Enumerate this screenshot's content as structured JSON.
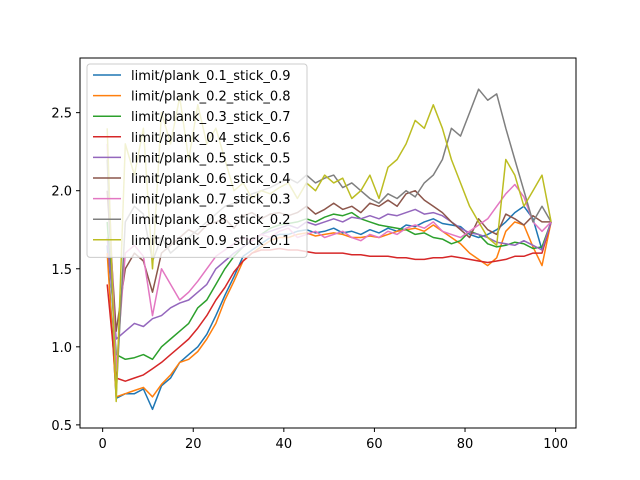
{
  "chart_data": {
    "type": "line",
    "title": "",
    "xlabel": "",
    "ylabel": "",
    "xlim": [
      -5.0,
      104.5
    ],
    "ylim": [
      0.48,
      2.85
    ],
    "xticks": [
      0,
      20,
      40,
      60,
      80,
      100
    ],
    "yticks": [
      0.5,
      1.0,
      1.5,
      2.0,
      2.5
    ],
    "grid": false,
    "legend_position": "upper-left",
    "x": [
      1,
      3,
      5,
      7,
      9,
      11,
      13,
      15,
      17,
      19,
      21,
      23,
      25,
      27,
      29,
      31,
      33,
      35,
      37,
      39,
      41,
      43,
      45,
      47,
      49,
      51,
      53,
      55,
      57,
      59,
      61,
      63,
      65,
      67,
      69,
      71,
      73,
      75,
      77,
      79,
      81,
      83,
      85,
      87,
      89,
      91,
      93,
      95,
      97,
      99
    ],
    "series": [
      {
        "name": "limit/plank_0.1_stick_0.9",
        "color": "#1f77b4",
        "values": [
          1.65,
          0.67,
          0.7,
          0.7,
          0.73,
          0.6,
          0.75,
          0.8,
          0.9,
          0.95,
          1.0,
          1.08,
          1.2,
          1.33,
          1.45,
          1.58,
          1.62,
          1.66,
          1.7,
          1.72,
          1.72,
          1.74,
          1.75,
          1.73,
          1.74,
          1.76,
          1.73,
          1.74,
          1.72,
          1.75,
          1.73,
          1.76,
          1.74,
          1.78,
          1.77,
          1.8,
          1.82,
          1.79,
          1.78,
          1.77,
          1.72,
          1.7,
          1.72,
          1.75,
          1.8,
          1.86,
          1.9,
          1.82,
          1.62,
          1.8
        ]
      },
      {
        "name": "limit/plank_0.2_stick_0.8",
        "color": "#ff7f0e",
        "values": [
          1.6,
          0.68,
          0.7,
          0.72,
          0.74,
          0.68,
          0.76,
          0.82,
          0.9,
          0.92,
          0.97,
          1.05,
          1.15,
          1.3,
          1.42,
          1.55,
          1.6,
          1.64,
          1.68,
          1.7,
          1.7,
          1.72,
          1.73,
          1.71,
          1.72,
          1.73,
          1.72,
          1.7,
          1.7,
          1.71,
          1.7,
          1.72,
          1.74,
          1.75,
          1.76,
          1.74,
          1.78,
          1.74,
          1.7,
          1.66,
          1.6,
          1.56,
          1.52,
          1.57,
          1.74,
          1.8,
          1.78,
          1.64,
          1.52,
          1.8
        ]
      },
      {
        "name": "limit/plank_0.3_stick_0.7",
        "color": "#2ca02c",
        "values": [
          1.8,
          0.95,
          0.92,
          0.93,
          0.95,
          0.92,
          1.0,
          1.05,
          1.1,
          1.15,
          1.25,
          1.3,
          1.4,
          1.5,
          1.58,
          1.64,
          1.68,
          1.72,
          1.76,
          1.78,
          1.79,
          1.8,
          1.82,
          1.8,
          1.83,
          1.85,
          1.84,
          1.86,
          1.82,
          1.8,
          1.78,
          1.77,
          1.76,
          1.75,
          1.72,
          1.73,
          1.7,
          1.69,
          1.66,
          1.68,
          1.74,
          1.72,
          1.66,
          1.64,
          1.65,
          1.67,
          1.66,
          1.63,
          1.64,
          1.8
        ]
      },
      {
        "name": "limit/plank_0.4_stick_0.6",
        "color": "#d62728",
        "values": [
          1.4,
          0.8,
          0.78,
          0.8,
          0.82,
          0.86,
          0.9,
          0.95,
          1.0,
          1.05,
          1.12,
          1.2,
          1.3,
          1.38,
          1.48,
          1.55,
          1.6,
          1.62,
          1.62,
          1.63,
          1.62,
          1.62,
          1.61,
          1.6,
          1.6,
          1.6,
          1.6,
          1.59,
          1.59,
          1.58,
          1.58,
          1.58,
          1.57,
          1.57,
          1.56,
          1.56,
          1.57,
          1.57,
          1.58,
          1.57,
          1.56,
          1.55,
          1.54,
          1.55,
          1.56,
          1.58,
          1.58,
          1.6,
          1.6,
          1.8
        ]
      },
      {
        "name": "limit/plank_0.5_stick_0.5",
        "color": "#9467bd",
        "values": [
          1.7,
          1.05,
          1.1,
          1.15,
          1.13,
          1.18,
          1.2,
          1.25,
          1.28,
          1.3,
          1.35,
          1.4,
          1.5,
          1.55,
          1.6,
          1.64,
          1.68,
          1.72,
          1.74,
          1.76,
          1.78,
          1.76,
          1.8,
          1.78,
          1.8,
          1.82,
          1.8,
          1.83,
          1.82,
          1.84,
          1.82,
          1.85,
          1.84,
          1.86,
          1.88,
          1.85,
          1.86,
          1.84,
          1.8,
          1.76,
          1.73,
          1.72,
          1.7,
          1.67,
          1.66,
          1.65,
          1.68,
          1.65,
          1.62,
          1.8
        ]
      },
      {
        "name": "limit/plank_0.6_stick_0.4",
        "color": "#8c564b",
        "values": [
          2.0,
          1.1,
          1.5,
          1.6,
          1.55,
          1.35,
          1.6,
          1.65,
          1.7,
          1.75,
          1.72,
          1.78,
          1.8,
          1.82,
          1.76,
          1.84,
          1.86,
          1.82,
          1.85,
          1.86,
          1.84,
          1.86,
          1.9,
          1.85,
          1.88,
          1.92,
          1.88,
          1.9,
          1.86,
          1.92,
          1.9,
          1.94,
          1.9,
          1.98,
          2.0,
          1.94,
          1.9,
          1.86,
          1.8,
          1.75,
          1.7,
          1.82,
          1.75,
          1.72,
          1.85,
          1.82,
          1.78,
          1.84,
          1.8,
          1.8
        ]
      },
      {
        "name": "limit/plank_0.7_stick_0.3",
        "color": "#e377c2",
        "values": [
          2.3,
          0.85,
          1.6,
          1.65,
          1.58,
          1.2,
          1.5,
          1.4,
          1.3,
          1.35,
          1.42,
          1.5,
          1.58,
          1.62,
          1.66,
          1.7,
          1.68,
          1.72,
          1.7,
          1.74,
          1.76,
          1.7,
          1.72,
          1.74,
          1.7,
          1.72,
          1.74,
          1.7,
          1.68,
          1.72,
          1.7,
          1.74,
          1.72,
          1.76,
          1.78,
          1.76,
          1.8,
          1.74,
          1.72,
          1.7,
          1.74,
          1.78,
          1.82,
          1.9,
          1.98,
          2.04,
          1.96,
          1.8,
          1.74,
          1.8
        ]
      },
      {
        "name": "limit/plank_0.8_stick_0.2",
        "color": "#7f7f7f",
        "values": [
          2.2,
          0.7,
          1.8,
          1.9,
          1.85,
          1.55,
          1.7,
          1.6,
          1.65,
          1.7,
          1.75,
          1.8,
          1.85,
          1.9,
          1.92,
          1.95,
          1.98,
          2.0,
          2.02,
          2.05,
          2.08,
          2.05,
          2.1,
          2.05,
          2.08,
          2.1,
          2.02,
          2.05,
          2.0,
          1.95,
          1.92,
          1.98,
          1.95,
          2.0,
          1.96,
          2.05,
          2.1,
          2.2,
          2.4,
          2.35,
          2.5,
          2.65,
          2.58,
          2.62,
          2.4,
          2.2,
          2.0,
          1.8,
          1.9,
          1.8
        ]
      },
      {
        "name": "limit/plank_0.9_stick_0.1",
        "color": "#bcbd22",
        "values": [
          2.4,
          0.65,
          2.3,
          2.1,
          2.4,
          1.5,
          2.5,
          2.3,
          2.6,
          2.2,
          2.55,
          2.3,
          2.4,
          2.2,
          2.0,
          2.05,
          1.95,
          2.0,
          1.98,
          2.02,
          2.05,
          1.95,
          2.05,
          2.0,
          2.1,
          2.05,
          2.08,
          1.95,
          2.0,
          2.1,
          1.95,
          2.15,
          2.2,
          2.3,
          2.45,
          2.4,
          2.55,
          2.4,
          2.2,
          2.05,
          1.9,
          1.8,
          1.7,
          1.65,
          2.2,
          2.1,
          1.9,
          2.0,
          2.1,
          1.8
        ]
      }
    ]
  }
}
